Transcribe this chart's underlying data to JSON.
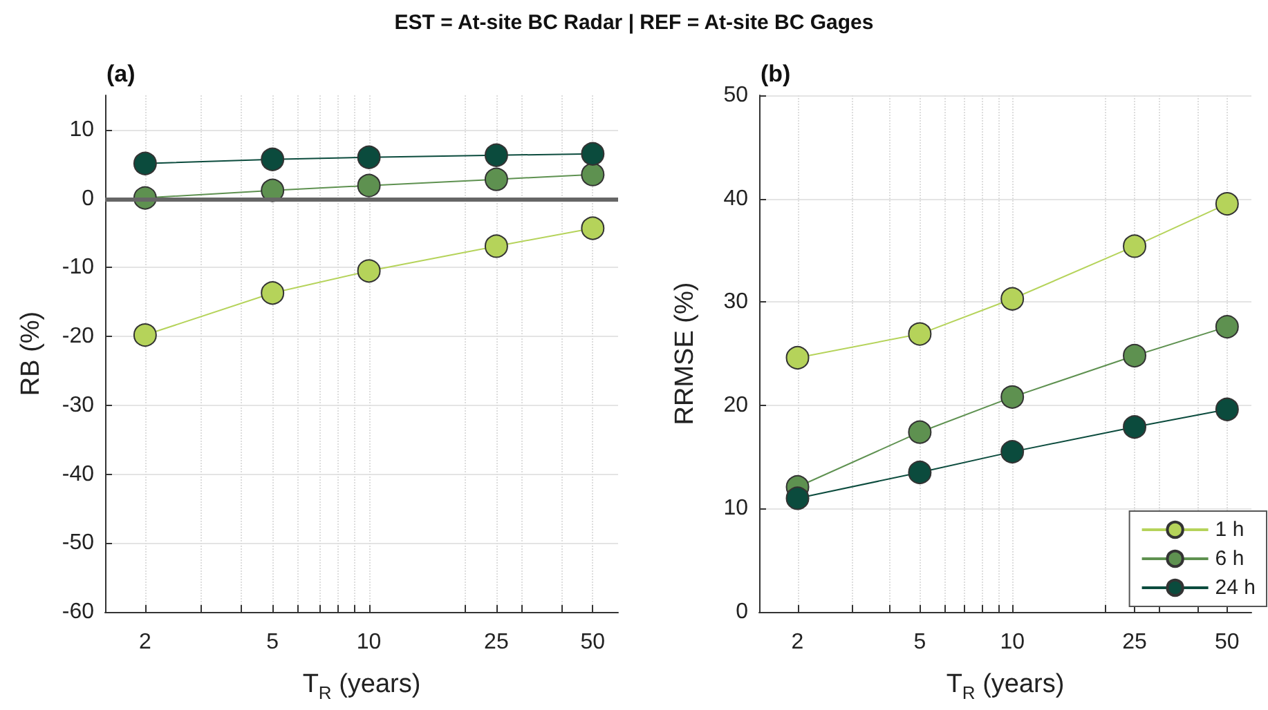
{
  "chart_data": [
    {
      "type": "line",
      "title": "(a)",
      "annotations": [
        "EST = At-site BC Radar | REF = At-site BC Gages"
      ],
      "xlabel": "T$_{R}$ (years)",
      "ylabel": "RB (%)",
      "log": "x",
      "grid": true,
      "marker": "circle",
      "line_style": "solid",
      "x": [
        2,
        5,
        10,
        25,
        50
      ],
      "xlim": [
        1.5,
        60
      ],
      "xticks": [
        2,
        {
          "value": 3,
          "label": null
        },
        {
          "value": 4,
          "label": null
        },
        5,
        {
          "value": 6,
          "label": null
        },
        {
          "value": 7,
          "label": null
        },
        {
          "value": 8,
          "label": null
        },
        {
          "value": 9,
          "label": null
        },
        10,
        {
          "value": 20,
          "label": null
        },
        25,
        {
          "value": 30,
          "label": null
        },
        {
          "value": 40,
          "label": null
        },
        50
      ],
      "ylim": [
        -60,
        15
      ],
      "yticks": [
        -60,
        -50,
        -40,
        -30,
        -20,
        -10,
        0,
        10
      ],
      "ref_lines": [
        {
          "axis": "y",
          "value": 0,
          "color": "#666666"
        }
      ],
      "series": [
        {
          "color": "#b5d35a",
          "values": [
            -19.8,
            -13.7,
            -10.5,
            -6.9,
            -4.3
          ]
        },
        {
          "color": "#5e9150",
          "values": [
            0.1,
            1.2,
            1.9,
            2.8,
            3.5
          ]
        },
        {
          "color": "#0b4b3d",
          "values": [
            5.1,
            5.7,
            6.0,
            6.3,
            6.5
          ]
        }
      ]
    },
    {
      "type": "line",
      "title": "(b)",
      "xlabel": "T$_{R}$ (years)",
      "ylabel": "RRMSE (%)",
      "log": "x",
      "grid": true,
      "marker": "circle",
      "line_style": "solid",
      "legend": "bottom right",
      "x": [
        2,
        5,
        10,
        25,
        50
      ],
      "xlim": [
        1.5,
        60
      ],
      "xticks": [
        2,
        {
          "value": 3,
          "label": null
        },
        {
          "value": 4,
          "label": null
        },
        5,
        {
          "value": 6,
          "label": null
        },
        {
          "value": 7,
          "label": null
        },
        {
          "value": 8,
          "label": null
        },
        {
          "value": 9,
          "label": null
        },
        10,
        {
          "value": 20,
          "label": null
        },
        25,
        {
          "value": 30,
          "label": null
        },
        {
          "value": 40,
          "label": null
        },
        50
      ],
      "ylim": [
        0,
        50
      ],
      "yticks": [
        0,
        10,
        20,
        30,
        40,
        50
      ],
      "series": [
        {
          "name": "1 h",
          "color": "#b5d35a",
          "values": [
            24.6,
            26.9,
            30.3,
            35.4,
            39.5
          ]
        },
        {
          "name": "6 h",
          "color": "#5e9150",
          "values": [
            12.1,
            17.4,
            20.8,
            24.8,
            27.6
          ]
        },
        {
          "name": "24 h",
          "color": "#0b4b3d",
          "values": [
            11.0,
            13.5,
            15.5,
            17.9,
            19.6
          ]
        }
      ]
    }
  ]
}
